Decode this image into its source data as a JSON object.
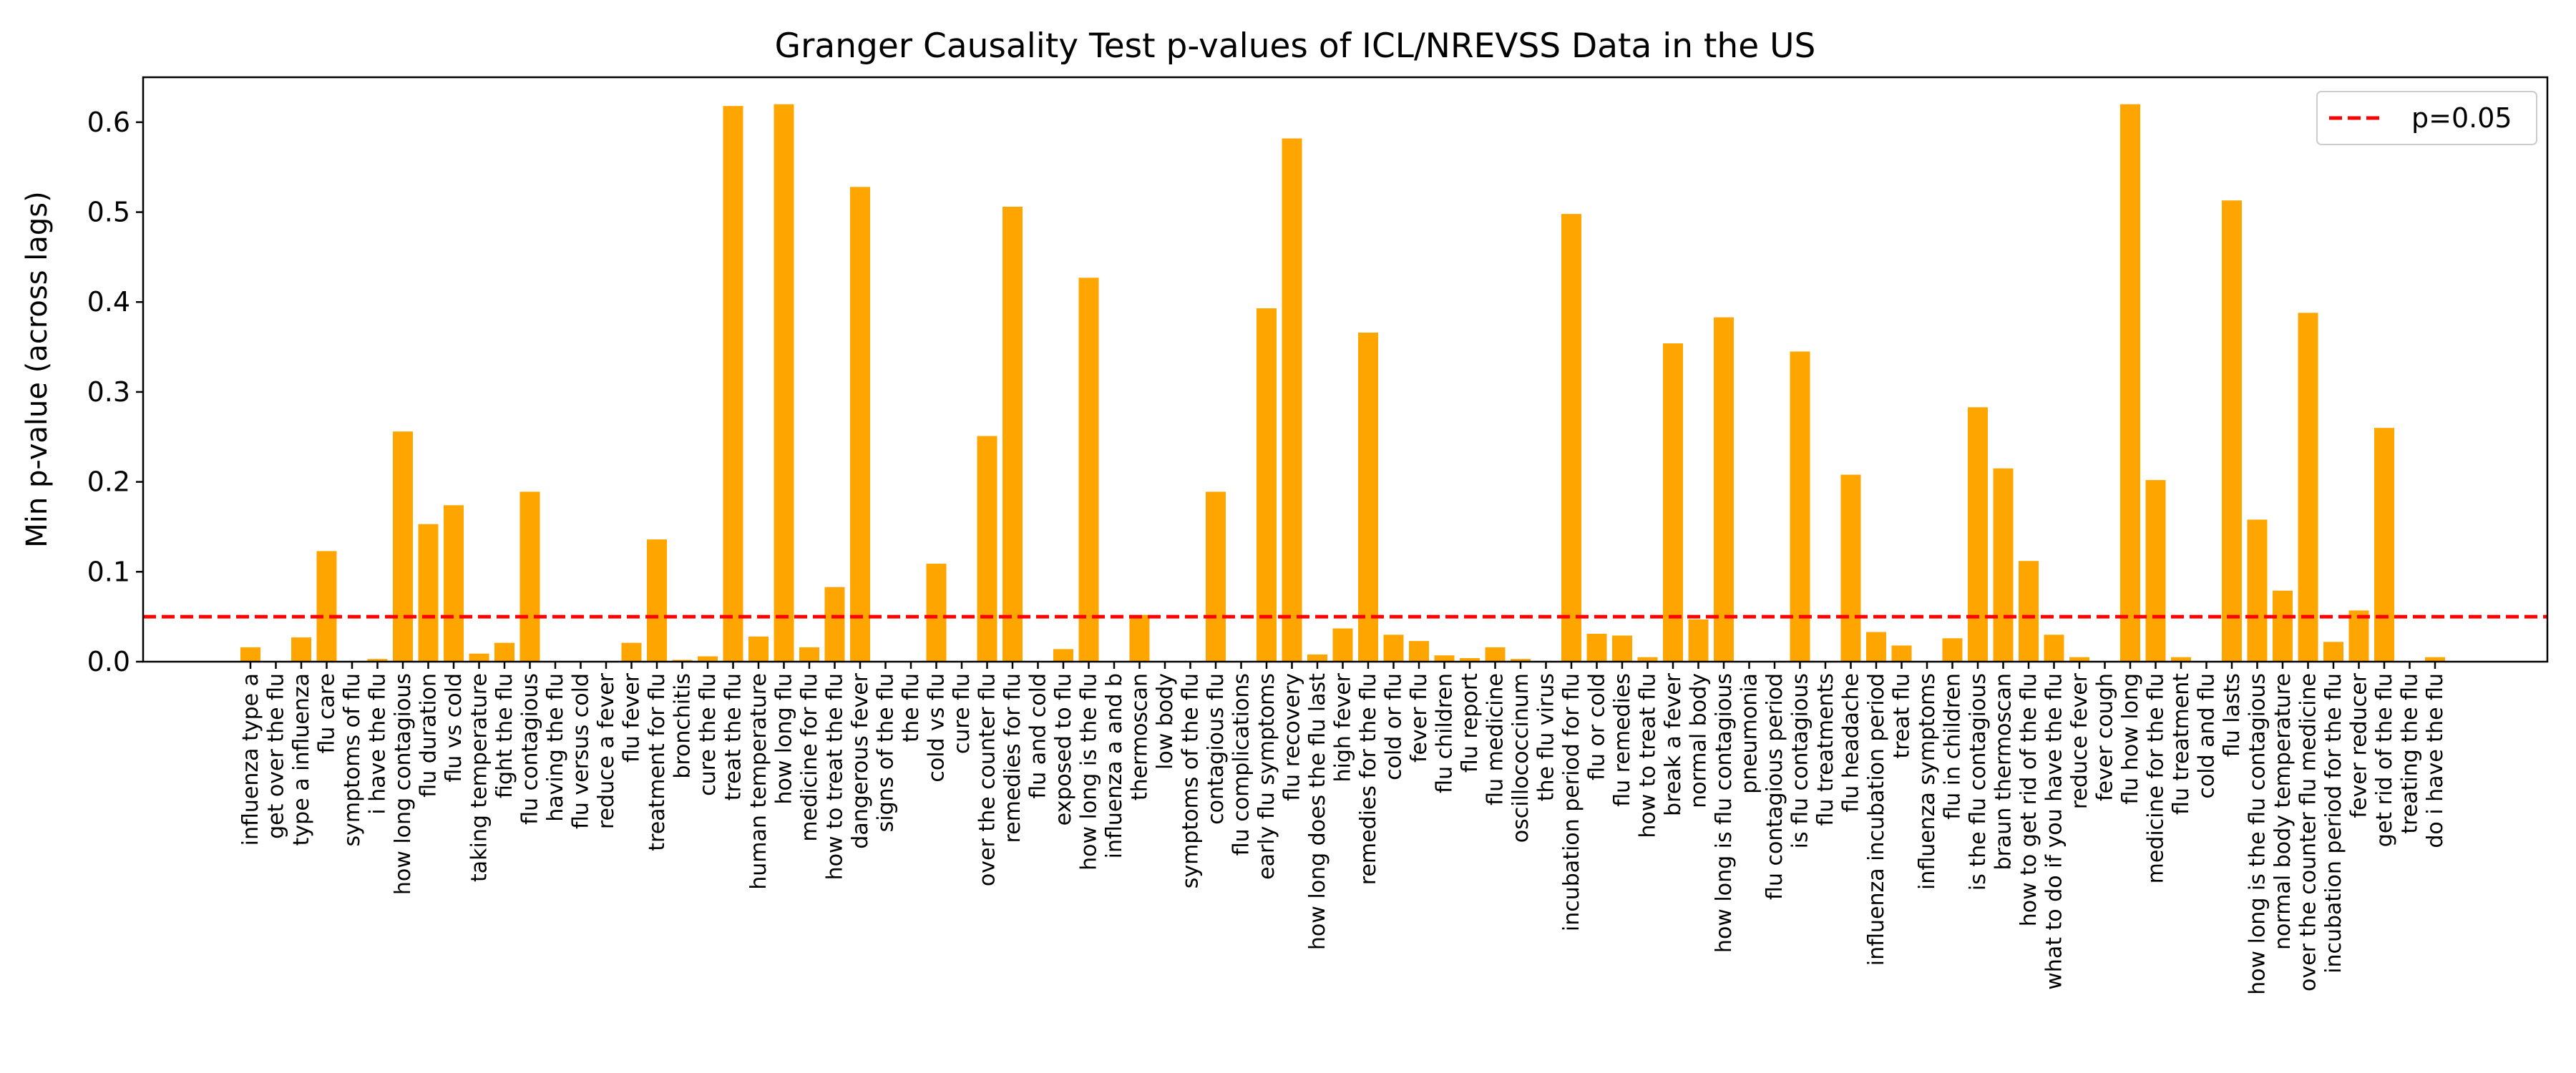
{
  "chart_data": {
    "type": "bar",
    "title": "Granger Causality Test p-values of ICL/NREVSS Data in the US",
    "xlabel": "",
    "ylabel": "Min p-value (across lags)",
    "ylim": [
      0,
      0.65
    ],
    "yticks": [
      "0.0",
      "0.1",
      "0.2",
      "0.3",
      "0.4",
      "0.5",
      "0.6"
    ],
    "grid": false,
    "legend": {
      "position": "top-right",
      "entries": [
        "p=0.05"
      ]
    },
    "threshold": {
      "label": "p=0.05",
      "value": 0.05,
      "color": "#ff0000",
      "style": "dashed"
    },
    "bar_color": "#ffa500",
    "categories": [
      "influenza type a",
      "get over the flu",
      "type a influenza",
      "flu care",
      "symptoms of flu",
      "i have the flu",
      "how long contagious",
      "flu duration",
      "flu vs cold",
      "taking temperature",
      "fight the flu",
      "flu contagious",
      "having the flu",
      "flu versus cold",
      "reduce a fever",
      "flu fever",
      "treatment for flu",
      "bronchitis",
      "cure the flu",
      "treat the flu",
      "human temperature",
      "how long flu",
      "medicine for flu",
      "how to treat the flu",
      "dangerous fever",
      "signs of the flu",
      "the flu",
      "cold vs flu",
      "cure flu",
      "over the counter flu",
      "remedies for flu",
      "flu and cold",
      "exposed to flu",
      "how long is the flu",
      "influenza a and b",
      "thermoscan",
      "low body",
      "symptoms of the flu",
      "contagious flu",
      "flu complications",
      "early flu symptoms",
      "flu recovery",
      "how long does the flu last",
      "high fever",
      "remedies for the flu",
      "cold or flu",
      "fever flu",
      "flu children",
      "flu report",
      "flu medicine",
      "oscillococcinum",
      "the flu virus",
      "incubation period for flu",
      "flu or cold",
      "flu remedies",
      "how to treat flu",
      "break a fever",
      "normal body",
      "how long is flu contagious",
      "pneumonia",
      "flu contagious period",
      "is flu contagious",
      "flu treatments",
      "flu headache",
      "influenza incubation period",
      "treat flu",
      "influenza symptoms",
      "flu in children",
      "is the flu contagious",
      "braun thermoscan",
      "how to get rid of the flu",
      "what to do if you have the flu",
      "reduce fever",
      "fever cough",
      "flu how long",
      "medicine for the flu",
      "flu treatment",
      "cold and flu",
      "flu lasts",
      "how long is the flu contagious",
      "normal body temperature",
      "over the counter flu medicine",
      "incubation period for the flu",
      "fever reducer",
      "get rid of the flu",
      "treating the flu",
      "do i have the flu"
    ],
    "values": [
      0.016,
      0.0,
      0.027,
      0.123,
      0.0,
      0.003,
      0.256,
      0.153,
      0.174,
      0.009,
      0.021,
      0.189,
      0.0,
      0.0,
      0.0,
      0.021,
      0.136,
      0.002,
      0.006,
      0.618,
      0.028,
      0.62,
      0.016,
      0.083,
      0.528,
      0.0,
      0.0,
      0.109,
      0.0,
      0.251,
      0.506,
      0.0,
      0.014,
      0.427,
      0.0,
      0.052,
      0.0,
      0.0,
      0.189,
      0.0,
      0.393,
      0.582,
      0.008,
      0.037,
      0.366,
      0.03,
      0.023,
      0.007,
      0.004,
      0.016,
      0.003,
      0.0,
      0.498,
      0.031,
      0.029,
      0.005,
      0.354,
      0.047,
      0.383,
      0.0,
      0.0,
      0.345,
      0.0,
      0.208,
      0.033,
      0.018,
      0.0,
      0.026,
      0.283,
      0.215,
      0.112,
      0.03,
      0.005,
      0.0,
      0.62,
      0.202,
      0.005,
      0.0,
      0.513,
      0.158,
      0.079,
      0.388,
      0.022,
      0.057,
      0.26,
      0.0,
      0.005
    ]
  }
}
